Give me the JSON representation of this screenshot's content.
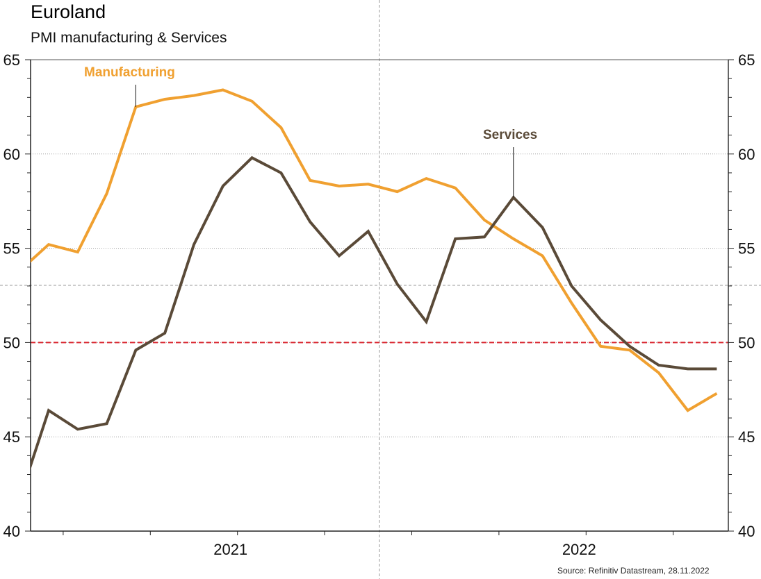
{
  "chart_data": {
    "type": "line",
    "title": "Euroland",
    "subtitle": "PMI manufacturing & Services",
    "source": "Source: Refinitiv Datastream, 28.11.2022",
    "xlabel": "",
    "ylabel": "",
    "ylim": [
      40,
      65
    ],
    "yticks": [
      40,
      45,
      50,
      55,
      60,
      65
    ],
    "y_minor_step": 1,
    "x": [
      "2020-11",
      "2020-12",
      "2021-01",
      "2021-02",
      "2021-03",
      "2021-04",
      "2021-05",
      "2021-06",
      "2021-07",
      "2021-08",
      "2021-09",
      "2021-10",
      "2021-11",
      "2021-12",
      "2022-01",
      "2022-02",
      "2022-03",
      "2022-04",
      "2022-05",
      "2022-06",
      "2022-07",
      "2022-08",
      "2022-09",
      "2022-10",
      "2022-11"
    ],
    "x_tick_labels": [
      {
        "label": "2021",
        "date": "2021-07"
      },
      {
        "label": "2022",
        "date": "2022-07"
      }
    ],
    "x_ticks": [
      "2021-01",
      "2021-04",
      "2021-07",
      "2021-10",
      "2022-01",
      "2022-04",
      "2022-07",
      "2022-10"
    ],
    "grid": true,
    "reference_line": {
      "value": 50,
      "color": "#d9232d",
      "style": "dashed"
    },
    "series": [
      {
        "name": "Manufacturing",
        "color": "#f0a030",
        "values": [
          53.8,
          55.2,
          54.8,
          57.9,
          62.5,
          62.9,
          63.1,
          63.4,
          62.8,
          61.4,
          58.6,
          58.3,
          58.4,
          58.0,
          58.7,
          58.2,
          56.5,
          55.5,
          54.6,
          52.1,
          49.8,
          49.6,
          48.4,
          46.4,
          47.3
        ],
        "label_annotation": {
          "text": "Manufacturing",
          "points_to": "2021-03"
        }
      },
      {
        "name": "Services",
        "color": "#5a4a38",
        "values": [
          41.7,
          46.4,
          45.4,
          45.7,
          49.6,
          50.5,
          55.2,
          58.3,
          59.8,
          59.0,
          56.4,
          54.6,
          55.9,
          53.1,
          51.1,
          55.5,
          55.6,
          57.7,
          56.1,
          53.0,
          51.2,
          49.8,
          48.8,
          48.6,
          48.6
        ],
        "label_annotation": {
          "text": "Services",
          "points_to": "2022-04"
        }
      }
    ]
  }
}
